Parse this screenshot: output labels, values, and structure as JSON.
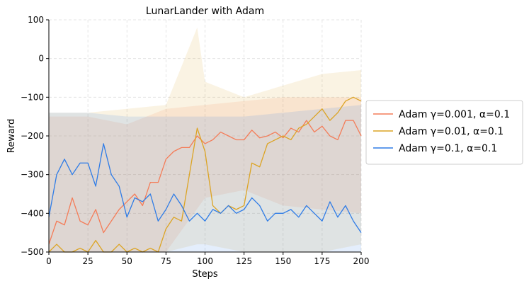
{
  "chart_data": {
    "type": "line",
    "title": "LunarLander with Adam",
    "xlabel": "Steps",
    "ylabel": "Reward",
    "xlim": [
      0,
      200
    ],
    "ylim": [
      -500,
      100
    ],
    "xticks": [
      0,
      25,
      50,
      75,
      100,
      125,
      150,
      175,
      200
    ],
    "yticks": [
      100,
      0,
      -100,
      -200,
      -300,
      -400,
      -500
    ],
    "grid": true,
    "legend_position": "outside-right",
    "series": [
      {
        "name": "Adam γ=0.001, α=0.1",
        "color": "#f47c58",
        "points": [
          [
            0,
            -480
          ],
          [
            5,
            -420
          ],
          [
            10,
            -430
          ],
          [
            15,
            -360
          ],
          [
            20,
            -420
          ],
          [
            25,
            -430
          ],
          [
            30,
            -390
          ],
          [
            35,
            -450
          ],
          [
            40,
            -420
          ],
          [
            45,
            -390
          ],
          [
            50,
            -370
          ],
          [
            55,
            -350
          ],
          [
            60,
            -380
          ],
          [
            65,
            -320
          ],
          [
            70,
            -320
          ],
          [
            75,
            -260
          ],
          [
            80,
            -240
          ],
          [
            85,
            -230
          ],
          [
            90,
            -230
          ],
          [
            95,
            -200
          ],
          [
            100,
            -220
          ],
          [
            105,
            -210
          ],
          [
            110,
            -190
          ],
          [
            115,
            -200
          ],
          [
            120,
            -210
          ],
          [
            125,
            -210
          ],
          [
            130,
            -185
          ],
          [
            135,
            -205
          ],
          [
            140,
            -200
          ],
          [
            145,
            -190
          ],
          [
            150,
            -205
          ],
          [
            155,
            -180
          ],
          [
            160,
            -190
          ],
          [
            165,
            -160
          ],
          [
            170,
            -190
          ],
          [
            175,
            -175
          ],
          [
            180,
            -200
          ],
          [
            185,
            -210
          ],
          [
            190,
            -160
          ],
          [
            195,
            -160
          ],
          [
            200,
            -200
          ]
        ],
        "band": [
          [
            0,
            -150,
            -500
          ],
          [
            25,
            -150,
            -500
          ],
          [
            50,
            -170,
            -500
          ],
          [
            75,
            -130,
            -500
          ],
          [
            100,
            -120,
            -360
          ],
          [
            125,
            -110,
            -340
          ],
          [
            150,
            -100,
            -380
          ],
          [
            175,
            -100,
            -390
          ],
          [
            200,
            -100,
            -400
          ]
        ]
      },
      {
        "name": "Adam γ=0.01, α=0.1",
        "color": "#dca424",
        "points": [
          [
            0,
            -500
          ],
          [
            5,
            -480
          ],
          [
            10,
            -500
          ],
          [
            15,
            -500
          ],
          [
            20,
            -490
          ],
          [
            25,
            -500
          ],
          [
            30,
            -470
          ],
          [
            35,
            -500
          ],
          [
            40,
            -500
          ],
          [
            45,
            -480
          ],
          [
            50,
            -500
          ],
          [
            55,
            -490
          ],
          [
            60,
            -500
          ],
          [
            65,
            -490
          ],
          [
            70,
            -500
          ],
          [
            75,
            -440
          ],
          [
            80,
            -410
          ],
          [
            85,
            -420
          ],
          [
            90,
            -300
          ],
          [
            95,
            -180
          ],
          [
            100,
            -240
          ],
          [
            105,
            -380
          ],
          [
            110,
            -400
          ],
          [
            115,
            -380
          ],
          [
            120,
            -390
          ],
          [
            125,
            -380
          ],
          [
            130,
            -270
          ],
          [
            135,
            -280
          ],
          [
            140,
            -220
          ],
          [
            145,
            -210
          ],
          [
            150,
            -200
          ],
          [
            155,
            -210
          ],
          [
            160,
            -180
          ],
          [
            165,
            -170
          ],
          [
            170,
            -150
          ],
          [
            175,
            -130
          ],
          [
            180,
            -160
          ],
          [
            185,
            -140
          ],
          [
            190,
            -110
          ],
          [
            195,
            -100
          ],
          [
            200,
            -110
          ]
        ],
        "band": [
          [
            0,
            -140,
            -500
          ],
          [
            25,
            -140,
            -500
          ],
          [
            50,
            -130,
            -500
          ],
          [
            75,
            -120,
            -500
          ],
          [
            95,
            80,
            -480
          ],
          [
            100,
            -60,
            -480
          ],
          [
            125,
            -100,
            -500
          ],
          [
            150,
            -70,
            -500
          ],
          [
            175,
            -40,
            -500
          ],
          [
            200,
            -30,
            -480
          ]
        ]
      },
      {
        "name": "Adam γ=0.1, α=0.1",
        "color": "#2f7ce6",
        "points": [
          [
            0,
            -410
          ],
          [
            5,
            -300
          ],
          [
            10,
            -260
          ],
          [
            15,
            -300
          ],
          [
            20,
            -270
          ],
          [
            25,
            -270
          ],
          [
            30,
            -330
          ],
          [
            35,
            -220
          ],
          [
            40,
            -300
          ],
          [
            45,
            -330
          ],
          [
            50,
            -410
          ],
          [
            55,
            -360
          ],
          [
            60,
            -370
          ],
          [
            65,
            -350
          ],
          [
            70,
            -420
          ],
          [
            75,
            -390
          ],
          [
            80,
            -350
          ],
          [
            85,
            -380
          ],
          [
            90,
            -420
          ],
          [
            95,
            -400
          ],
          [
            100,
            -420
          ],
          [
            105,
            -390
          ],
          [
            110,
            -400
          ],
          [
            115,
            -380
          ],
          [
            120,
            -400
          ],
          [
            125,
            -390
          ],
          [
            130,
            -360
          ],
          [
            135,
            -380
          ],
          [
            140,
            -420
          ],
          [
            145,
            -400
          ],
          [
            150,
            -400
          ],
          [
            155,
            -390
          ],
          [
            160,
            -410
          ],
          [
            165,
            -380
          ],
          [
            170,
            -400
          ],
          [
            175,
            -420
          ],
          [
            180,
            -370
          ],
          [
            185,
            -410
          ],
          [
            190,
            -380
          ],
          [
            195,
            -420
          ],
          [
            200,
            -450
          ]
        ],
        "band": [
          [
            0,
            -140,
            -500
          ],
          [
            25,
            -140,
            -500
          ],
          [
            50,
            -150,
            -500
          ],
          [
            75,
            -150,
            -500
          ],
          [
            100,
            -150,
            -500
          ],
          [
            125,
            -150,
            -500
          ],
          [
            150,
            -140,
            -500
          ],
          [
            175,
            -130,
            -500
          ],
          [
            200,
            -120,
            -500
          ]
        ]
      }
    ]
  }
}
